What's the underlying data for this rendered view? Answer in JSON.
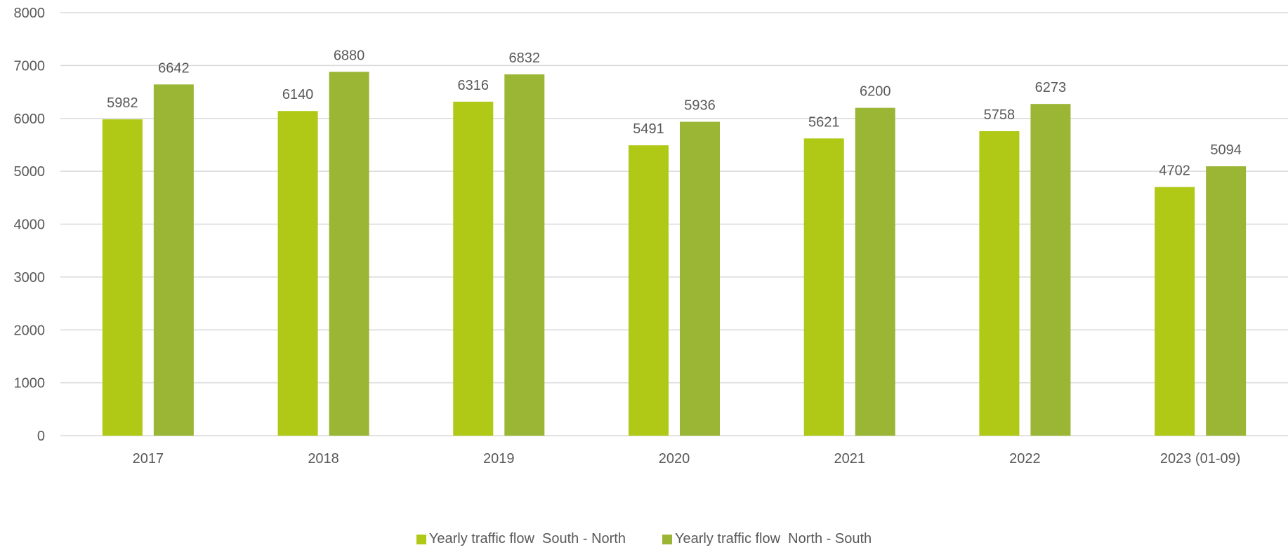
{
  "chart_data": {
    "type": "bar",
    "categories": [
      "2017",
      "2018",
      "2019",
      "2020",
      "2021",
      "2022",
      "2023 (01-09)"
    ],
    "series": [
      {
        "name": "Yearly traffic flow  South - North",
        "color": "#b0c816",
        "values": [
          5982,
          6140,
          6316,
          5491,
          5621,
          5758,
          4702
        ]
      },
      {
        "name": "Yearly traffic flow  North - South",
        "color": "#9bb535",
        "values": [
          6642,
          6880,
          6832,
          5936,
          6200,
          6273,
          5094
        ]
      }
    ],
    "ylim": [
      0,
      8000
    ],
    "yticks": [
      0,
      1000,
      2000,
      3000,
      4000,
      5000,
      6000,
      7000,
      8000
    ],
    "grid": true,
    "legend": "bottom",
    "data_labels": true
  }
}
